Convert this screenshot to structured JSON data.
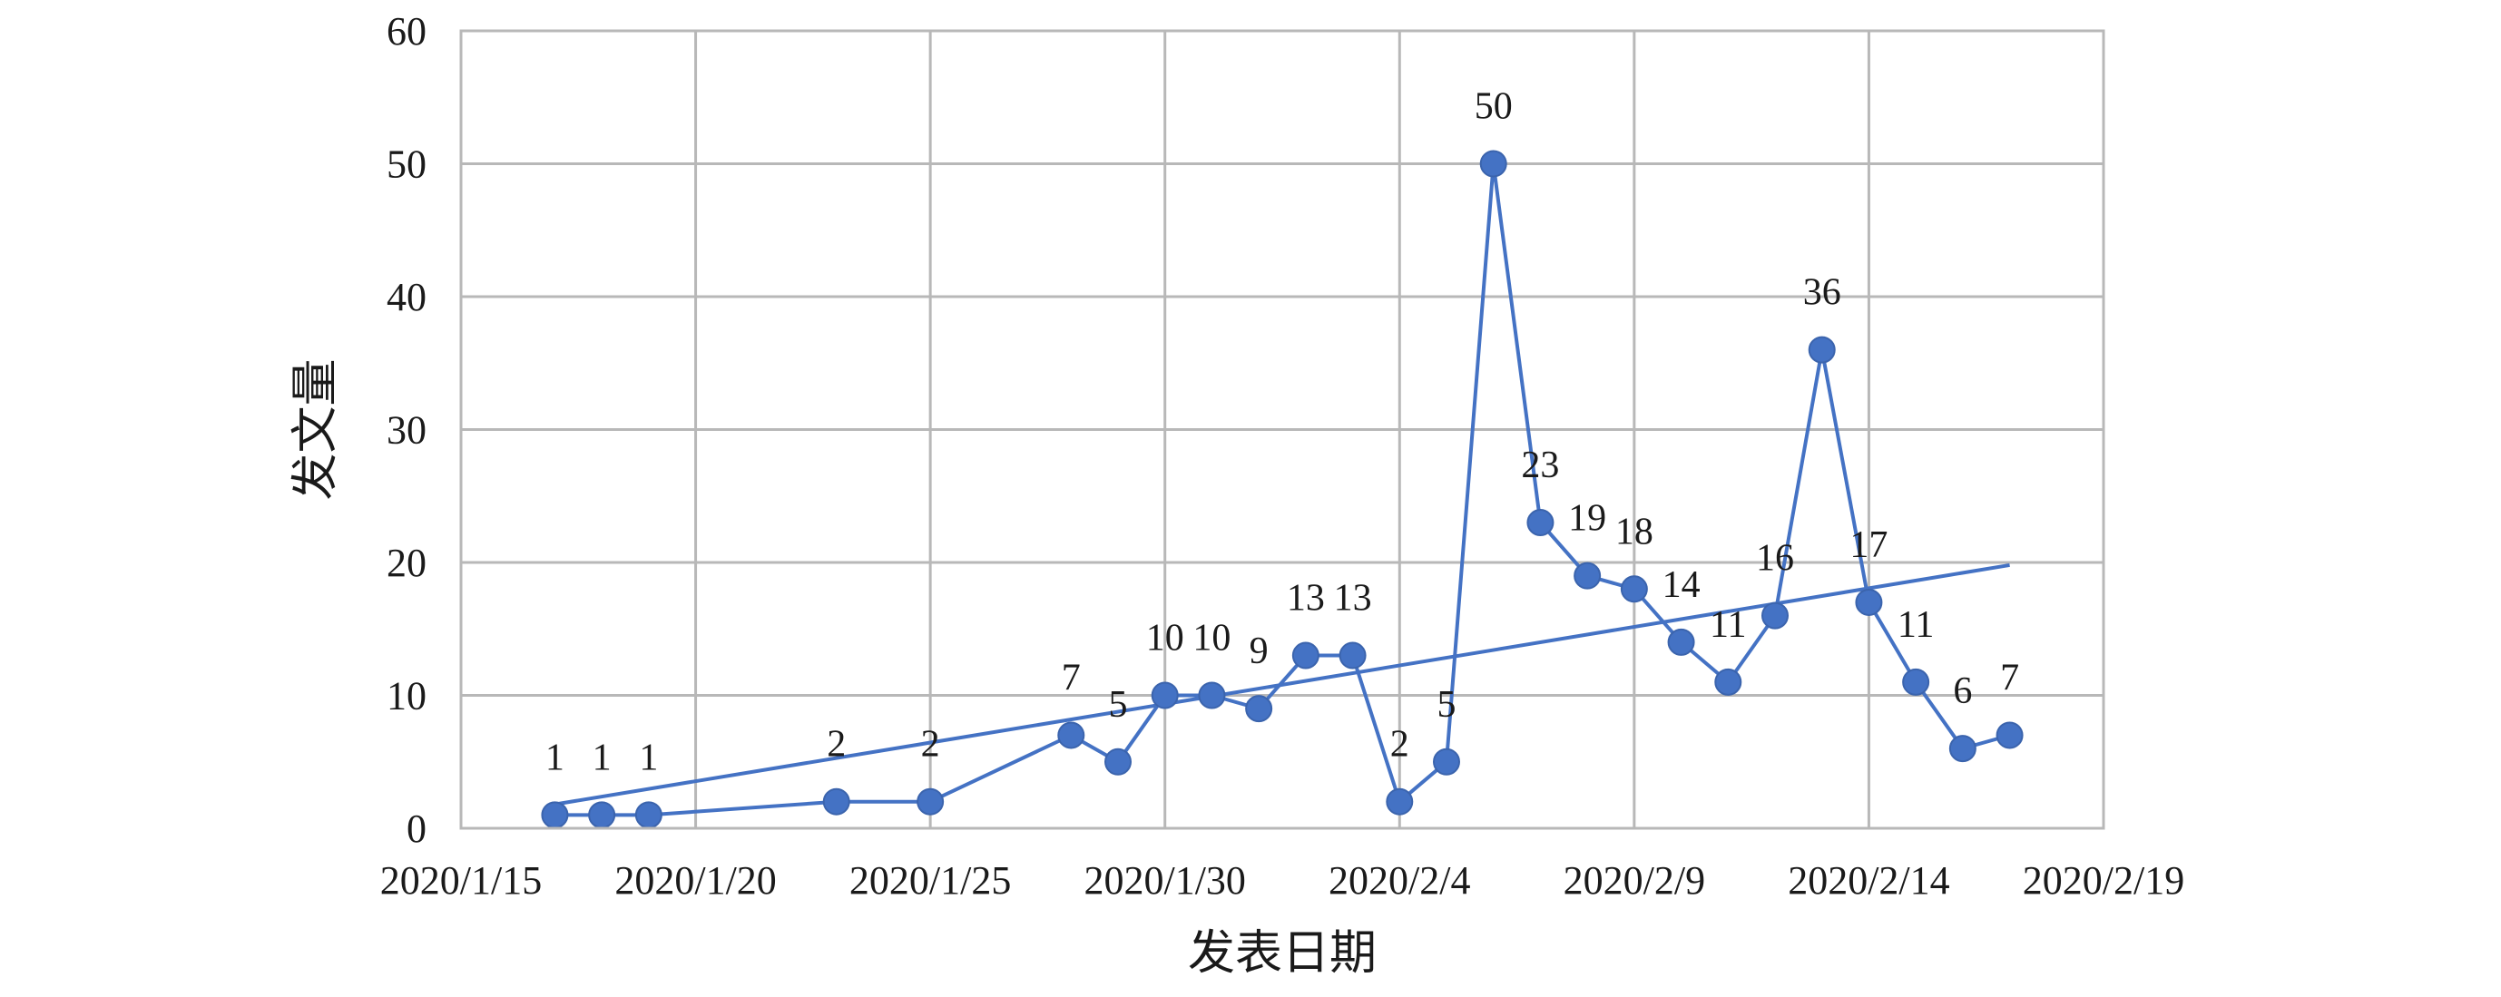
{
  "chart_data": {
    "type": "line",
    "title": "",
    "xlabel": "发表日期",
    "ylabel": "发文量",
    "ylim": [
      0,
      60
    ],
    "yticks": [
      0,
      10,
      20,
      30,
      40,
      50,
      60
    ],
    "xlim": [
      "2020-01-15",
      "2020-02-19"
    ],
    "xticks": [
      {
        "date": "2020-01-15",
        "label": "2020/1/15"
      },
      {
        "date": "2020-01-20",
        "label": "2020/1/20"
      },
      {
        "date": "2020-01-25",
        "label": "2020/1/25"
      },
      {
        "date": "2020-01-30",
        "label": "2020/1/30"
      },
      {
        "date": "2020-02-04",
        "label": "2020/2/4"
      },
      {
        "date": "2020-02-09",
        "label": "2020/2/9"
      },
      {
        "date": "2020-02-14",
        "label": "2020/2/14"
      },
      {
        "date": "2020-02-19",
        "label": "2020/2/19"
      }
    ],
    "grid": true,
    "legend": "none",
    "colors": {
      "series": "#4472C4",
      "grid": "#b8b8b8",
      "frame": "#b8b8b8"
    },
    "series": [
      {
        "points": [
          {
            "x": "2020-01-17",
            "y": 1
          },
          {
            "x": "2020-01-18",
            "y": 1
          },
          {
            "x": "2020-01-19",
            "y": 1
          },
          {
            "x": "2020-01-23",
            "y": 2
          },
          {
            "x": "2020-01-25",
            "y": 2
          },
          {
            "x": "2020-01-28",
            "y": 7
          },
          {
            "x": "2020-01-29",
            "y": 5
          },
          {
            "x": "2020-01-30",
            "y": 10
          },
          {
            "x": "2020-01-31",
            "y": 10
          },
          {
            "x": "2020-02-01",
            "y": 9
          },
          {
            "x": "2020-02-02",
            "y": 13
          },
          {
            "x": "2020-02-03",
            "y": 13
          },
          {
            "x": "2020-02-04",
            "y": 2
          },
          {
            "x": "2020-02-05",
            "y": 5
          },
          {
            "x": "2020-02-06",
            "y": 50
          },
          {
            "x": "2020-02-07",
            "y": 23
          },
          {
            "x": "2020-02-08",
            "y": 19
          },
          {
            "x": "2020-02-09",
            "y": 18
          },
          {
            "x": "2020-02-10",
            "y": 14
          },
          {
            "x": "2020-02-11",
            "y": 11
          },
          {
            "x": "2020-02-12",
            "y": 16
          },
          {
            "x": "2020-02-13",
            "y": 36
          },
          {
            "x": "2020-02-14",
            "y": 17
          },
          {
            "x": "2020-02-15",
            "y": 11
          },
          {
            "x": "2020-02-16",
            "y": 6
          },
          {
            "x": "2020-02-17",
            "y": 7
          }
        ]
      }
    ],
    "trendline": {
      "type": "linear",
      "start": {
        "x": "2020-01-17",
        "y": 1.8
      },
      "end": {
        "x": "2020-02-17",
        "y": 19.8
      }
    }
  }
}
